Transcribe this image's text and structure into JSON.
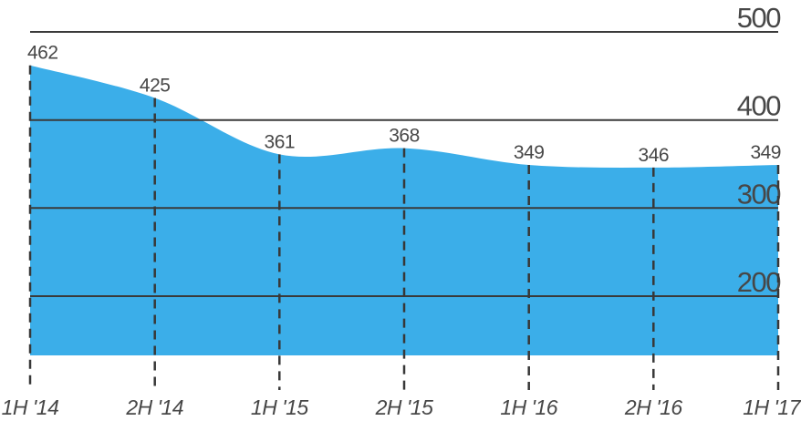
{
  "chart_data": {
    "type": "area",
    "title": "",
    "xlabel": "",
    "ylabel": "",
    "categories": [
      "1H '14",
      "2H '14",
      "1H '15",
      "2H '15",
      "1H '16",
      "2H '16",
      "1H '17"
    ],
    "values": [
      462,
      425,
      361,
      368,
      349,
      346,
      349
    ],
    "yticks": [
      500,
      400,
      300,
      200
    ],
    "ylim": [
      130,
      510
    ],
    "grid": true,
    "vertical_grid_style": "dashed",
    "legend": "none",
    "ytick_side": "right",
    "colors": {
      "area_fill": "#3BAEE9",
      "gridline": "#3a3a3a",
      "dashed_line": "#383838",
      "text": "#474747"
    }
  }
}
